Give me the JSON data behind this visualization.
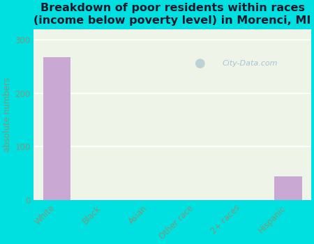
{
  "title": "Breakdown of poor residents within races\n(income below poverty level) in Morenci, MI",
  "categories": [
    "White",
    "Black",
    "Asian",
    "Other race",
    "2+ races",
    "Hispanic"
  ],
  "values": [
    268,
    0,
    0,
    0,
    0,
    45
  ],
  "bar_color": "#c9a8d4",
  "ylabel": "absolute numbers",
  "ylim": [
    0,
    320
  ],
  "yticks": [
    0,
    100,
    200,
    300
  ],
  "bg_outer": "#00e0e0",
  "bg_plot": "#eef5e8",
  "title_fontsize": 11.5,
  "tick_label_color": "#7a9a7a",
  "axis_label_color": "#7a9a7a",
  "ytick_label_color": "#7a9a7a",
  "grid_color": "#ffffff",
  "watermark": "City-Data.com"
}
